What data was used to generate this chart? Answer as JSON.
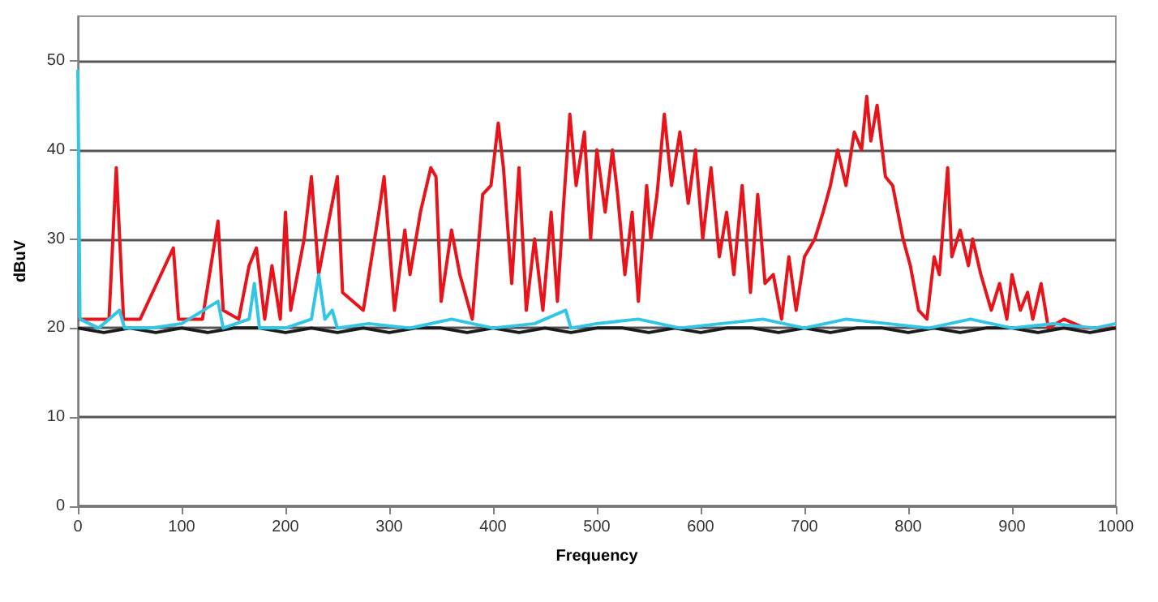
{
  "chart_data": {
    "type": "line",
    "xlabel": "Frequency",
    "ylabel": "dBuV",
    "xlim": [
      0,
      1000
    ],
    "xticks": [
      0,
      100,
      200,
      300,
      400,
      500,
      600,
      700,
      800,
      900,
      1000
    ],
    "ylim": [
      0,
      55
    ],
    "yticks": [
      0,
      10,
      20,
      30,
      40,
      50
    ],
    "grid": "y",
    "marker": "none",
    "line_style": "solid",
    "series": [
      {
        "color": "#e8141b",
        "x": [
          0,
          20,
          30,
          37,
          44,
          60,
          92,
          97,
          120,
          135,
          140,
          155,
          165,
          172,
          180,
          187,
          195,
          200,
          205,
          218,
          225,
          232,
          240,
          250,
          255,
          275,
          290,
          295,
          305,
          315,
          320,
          330,
          340,
          345,
          350,
          360,
          368,
          380,
          390,
          398,
          405,
          410,
          418,
          425,
          432,
          440,
          448,
          456,
          462,
          468,
          474,
          480,
          488,
          494,
          500,
          508,
          515,
          520,
          527,
          534,
          540,
          548,
          552,
          558,
          565,
          572,
          580,
          588,
          595,
          602,
          610,
          618,
          625,
          632,
          640,
          648,
          655,
          662,
          670,
          678,
          685,
          692,
          700,
          710,
          718,
          725,
          732,
          740,
          748,
          755,
          760,
          764,
          770,
          778,
          785,
          795,
          802,
          810,
          818,
          825,
          830,
          838,
          842,
          850,
          858,
          862,
          870,
          880,
          888,
          895,
          900,
          908,
          915,
          920,
          928,
          935,
          950,
          970,
          1000
        ],
        "values": [
          21,
          21,
          21,
          38,
          21,
          21,
          29,
          21,
          21,
          32,
          22,
          21,
          27,
          29,
          21,
          27,
          21,
          33,
          22,
          30,
          37,
          26,
          31,
          37,
          24,
          22,
          33,
          37,
          22,
          31,
          26,
          33,
          38,
          37,
          23,
          31,
          26,
          21,
          35,
          36,
          43,
          38,
          25,
          38,
          22,
          30,
          22,
          33,
          23,
          34,
          44,
          36,
          42,
          30,
          40,
          33,
          40,
          35,
          26,
          33,
          23,
          36,
          30,
          35,
          44,
          36,
          42,
          34,
          40,
          30,
          38,
          28,
          33,
          26,
          36,
          24,
          35,
          25,
          26,
          21,
          28,
          22,
          28,
          30,
          33,
          36,
          40,
          36,
          42,
          40,
          46,
          41,
          45,
          37,
          36,
          30,
          27,
          22,
          21,
          28,
          26,
          38,
          28,
          31,
          27,
          30,
          26,
          22,
          25,
          21,
          26,
          22,
          24,
          21,
          25,
          20,
          21,
          20,
          20
        ]
      },
      {
        "color": "#1a1a1a",
        "x": [
          0,
          25,
          50,
          75,
          100,
          125,
          150,
          175,
          200,
          225,
          250,
          275,
          300,
          325,
          350,
          375,
          400,
          425,
          450,
          475,
          500,
          525,
          550,
          575,
          600,
          625,
          650,
          675,
          700,
          725,
          750,
          775,
          800,
          825,
          850,
          875,
          900,
          925,
          950,
          975,
          1000
        ],
        "values": [
          20,
          19.5,
          20,
          19.5,
          20,
          19.5,
          20,
          20,
          19.5,
          20,
          19.5,
          20,
          19.5,
          20,
          20,
          19.5,
          20,
          19.5,
          20,
          19.5,
          20,
          20,
          19.5,
          20,
          19.5,
          20,
          20,
          19.5,
          20,
          19.5,
          20,
          20,
          19.5,
          20,
          19.5,
          20,
          20,
          19.5,
          20,
          19.5,
          20
        ]
      },
      {
        "color": "#33c6e4",
        "x": [
          0,
          2,
          20,
          40,
          45,
          70,
          100,
          135,
          140,
          165,
          170,
          175,
          200,
          225,
          232,
          238,
          245,
          250,
          280,
          320,
          360,
          400,
          440,
          470,
          475,
          500,
          540,
          580,
          620,
          660,
          700,
          740,
          780,
          820,
          860,
          900,
          940,
          980,
          1000
        ],
        "values": [
          49,
          21,
          20,
          22,
          20,
          20,
          20.5,
          23,
          20,
          21,
          25,
          20,
          20,
          21,
          26,
          21,
          22,
          20,
          20.5,
          20,
          21,
          20,
          20.5,
          22,
          20,
          20.5,
          21,
          20,
          20.5,
          21,
          20,
          21,
          20.5,
          20,
          21,
          20,
          20.5,
          20,
          20.5
        ]
      }
    ]
  }
}
